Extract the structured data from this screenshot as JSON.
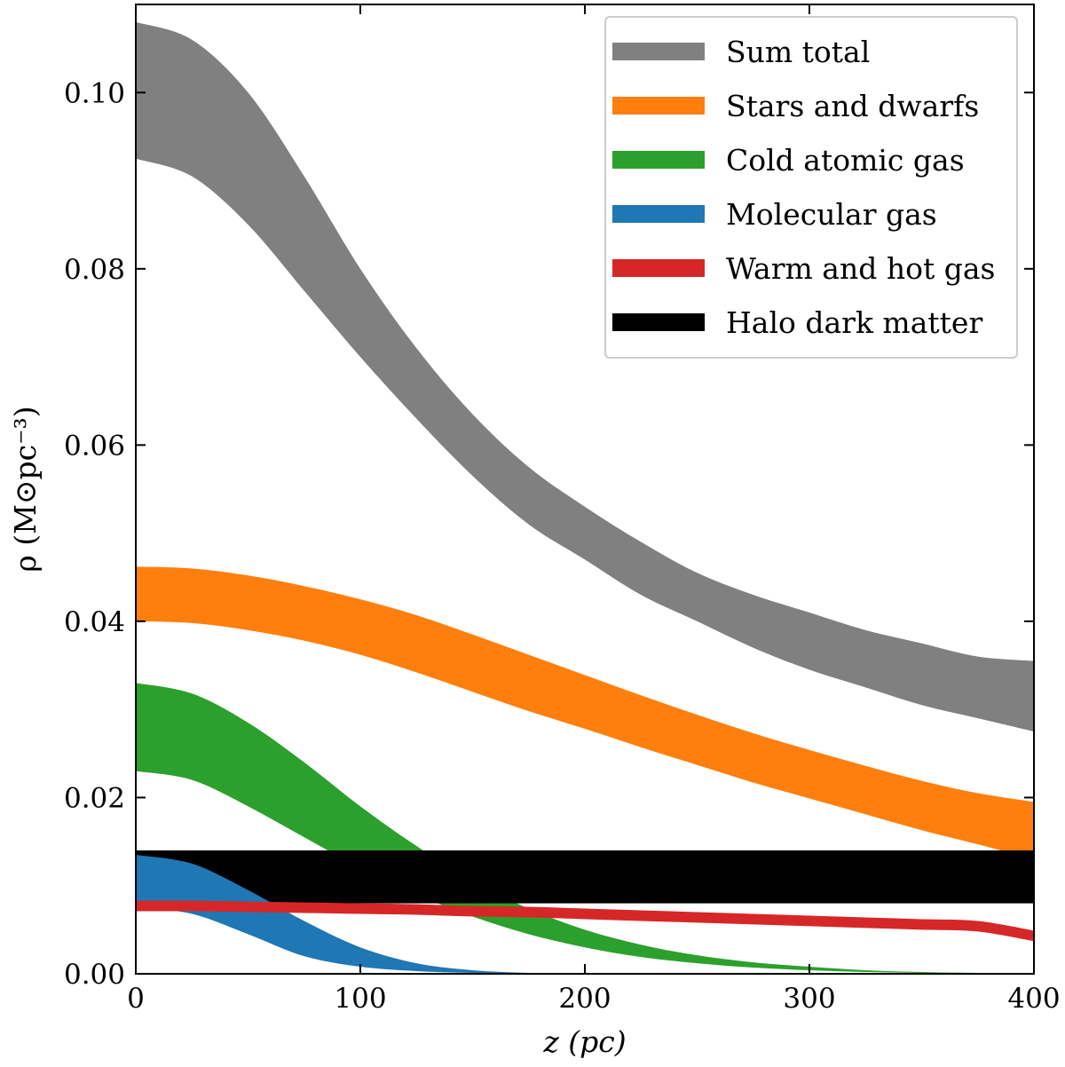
{
  "chart_data": {
    "type": "area",
    "title": "",
    "xlabel": "z (pc)",
    "ylabel": "ρ (M⊙pc⁻³)",
    "xlim": [
      0,
      400
    ],
    "ylim": [
      0,
      0.11
    ],
    "xticks": [
      0,
      100,
      200,
      300,
      400
    ],
    "yticks": [
      0.0,
      0.02,
      0.04,
      0.06,
      0.08,
      0.1
    ],
    "xtick_labels": [
      "0",
      "100",
      "200",
      "300",
      "400"
    ],
    "ytick_labels": [
      "0.00",
      "0.02",
      "0.04",
      "0.06",
      "0.08",
      "0.10"
    ],
    "grid": false,
    "legend_position": "top-right",
    "x": [
      0,
      25,
      50,
      75,
      100,
      125,
      150,
      175,
      200,
      225,
      250,
      275,
      300,
      325,
      350,
      375,
      400
    ],
    "series": [
      {
        "name": "Sum total",
        "color": "#808080",
        "lower": [
          0.0925,
          0.0905,
          0.085,
          0.0775,
          0.07,
          0.063,
          0.0565,
          0.051,
          0.047,
          0.043,
          0.04,
          0.037,
          0.0345,
          0.0325,
          0.0305,
          0.029,
          0.0275
        ],
        "upper": [
          0.108,
          0.106,
          0.1,
          0.0905,
          0.08,
          0.071,
          0.0635,
          0.0575,
          0.053,
          0.049,
          0.0455,
          0.043,
          0.041,
          0.039,
          0.0375,
          0.036,
          0.0355
        ]
      },
      {
        "name": "Stars and dwarfs",
        "color": "#ff7f0e",
        "lower": [
          0.04,
          0.0398,
          0.039,
          0.0378,
          0.0362,
          0.0342,
          0.032,
          0.0298,
          0.0278,
          0.0257,
          0.0237,
          0.0217,
          0.0199,
          0.0181,
          0.0163,
          0.0147,
          0.013
        ],
        "upper": [
          0.0462,
          0.046,
          0.0452,
          0.044,
          0.0425,
          0.0407,
          0.0385,
          0.0362,
          0.0339,
          0.0316,
          0.0294,
          0.0273,
          0.0254,
          0.0236,
          0.0219,
          0.0205,
          0.0195
        ]
      },
      {
        "name": "Cold atomic gas",
        "color": "#2ca02c",
        "lower": [
          0.023,
          0.022,
          0.019,
          0.0155,
          0.012,
          0.009,
          0.0065,
          0.0045,
          0.003,
          0.0019,
          0.0012,
          0.0007,
          0.0004,
          0.0002,
          0.0001,
          0.0,
          0.0
        ],
        "upper": [
          0.033,
          0.0318,
          0.0285,
          0.024,
          0.019,
          0.0145,
          0.0105,
          0.0074,
          0.005,
          0.0033,
          0.0021,
          0.0013,
          0.0008,
          0.0004,
          0.0002,
          0.0001,
          0.0
        ]
      },
      {
        "name": "Molecular gas",
        "color": "#1f77b4",
        "lower": [
          0.0075,
          0.0068,
          0.0045,
          0.002,
          0.0008,
          0.0003,
          0.0001,
          0.0,
          0.0,
          0.0,
          0.0,
          0.0,
          0.0,
          0.0,
          0.0,
          0.0,
          0.0
        ],
        "upper": [
          0.0135,
          0.0125,
          0.0095,
          0.006,
          0.003,
          0.0012,
          0.0004,
          0.0001,
          0.0,
          0.0,
          0.0,
          0.0,
          0.0,
          0.0,
          0.0,
          0.0,
          0.0
        ]
      },
      {
        "name": "Warm and hot gas",
        "color": "#d62728",
        "lower": [
          0.0071,
          0.0071,
          0.007,
          0.0069,
          0.0068,
          0.0067,
          0.0065,
          0.0064,
          0.0062,
          0.006,
          0.0058,
          0.0056,
          0.0054,
          0.0052,
          0.005,
          0.0048,
          0.0037
        ],
        "upper": [
          0.0083,
          0.0083,
          0.0082,
          0.0081,
          0.008,
          0.0079,
          0.0077,
          0.0076,
          0.0074,
          0.0072,
          0.007,
          0.0068,
          0.0066,
          0.0064,
          0.0062,
          0.006,
          0.0049
        ]
      },
      {
        "name": "Halo dark matter",
        "color": "#000000",
        "lower": [
          0.008,
          0.008,
          0.008,
          0.008,
          0.008,
          0.008,
          0.008,
          0.008,
          0.008,
          0.008,
          0.008,
          0.008,
          0.008,
          0.008,
          0.008,
          0.008,
          0.008
        ],
        "upper": [
          0.014,
          0.014,
          0.014,
          0.014,
          0.014,
          0.014,
          0.014,
          0.014,
          0.014,
          0.014,
          0.014,
          0.014,
          0.014,
          0.014,
          0.014,
          0.014,
          0.014
        ]
      }
    ],
    "draw_order": [
      "Sum total",
      "Stars and dwarfs",
      "Cold atomic gas",
      "Halo dark matter",
      "Molecular gas",
      "Warm and hot gas"
    ]
  }
}
